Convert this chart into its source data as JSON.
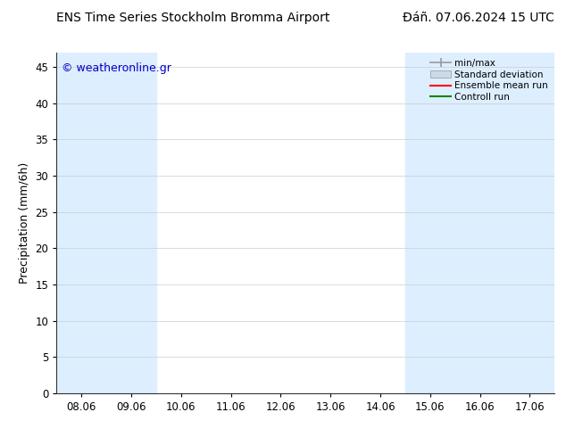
{
  "title_left": "ENS Time Series Stockholm Bromma Airport",
  "title_right": "Đáñ. 07.06.2024 15 UTC",
  "ylabel": "Precipitation (mm/6h)",
  "watermark": "© weatheronline.gr",
  "background_color": "#ffffff",
  "plot_bg_color": "#ffffff",
  "shaded_band_color": "#ddeeff",
  "ylim": [
    0,
    47
  ],
  "yticks": [
    0,
    5,
    10,
    15,
    20,
    25,
    30,
    35,
    40,
    45
  ],
  "x_labels": [
    "08.06",
    "09.06",
    "10.06",
    "11.06",
    "12.06",
    "13.06",
    "14.06",
    "15.06",
    "16.06",
    "17.06"
  ],
  "shaded_x_indices": [
    0,
    1,
    7,
    8,
    9
  ],
  "legend_entries": [
    {
      "label": "min/max",
      "color": "#aaaaaa"
    },
    {
      "label": "Standard deviation",
      "color": "#ccd9e8"
    },
    {
      "label": "Ensemble mean run",
      "color": "#ff0000"
    },
    {
      "label": "Controll run",
      "color": "#008800"
    }
  ],
  "title_fontsize": 10,
  "axis_fontsize": 9,
  "tick_fontsize": 8.5,
  "watermark_color": "#0000cc",
  "watermark_fontsize": 9
}
